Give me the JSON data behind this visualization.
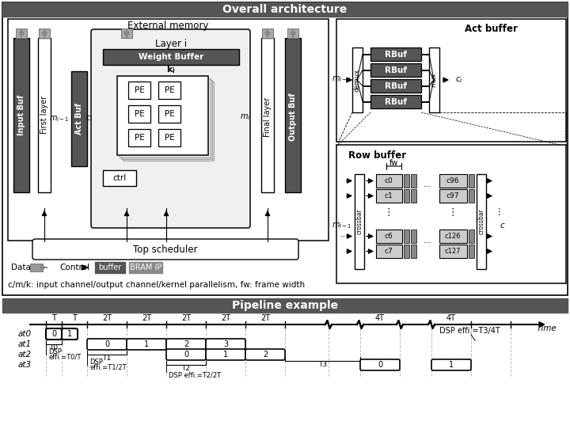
{
  "title": "Overall architecture",
  "title2": "Pipeline example",
  "dark": "#555555",
  "mid_gray": "#888888",
  "light_gray": "#cccccc",
  "white": "#ffffff",
  "black": "#000000",
  "legend_note": "c/m/k: input channel/output channel/kernel parallelism, fw: frame width"
}
